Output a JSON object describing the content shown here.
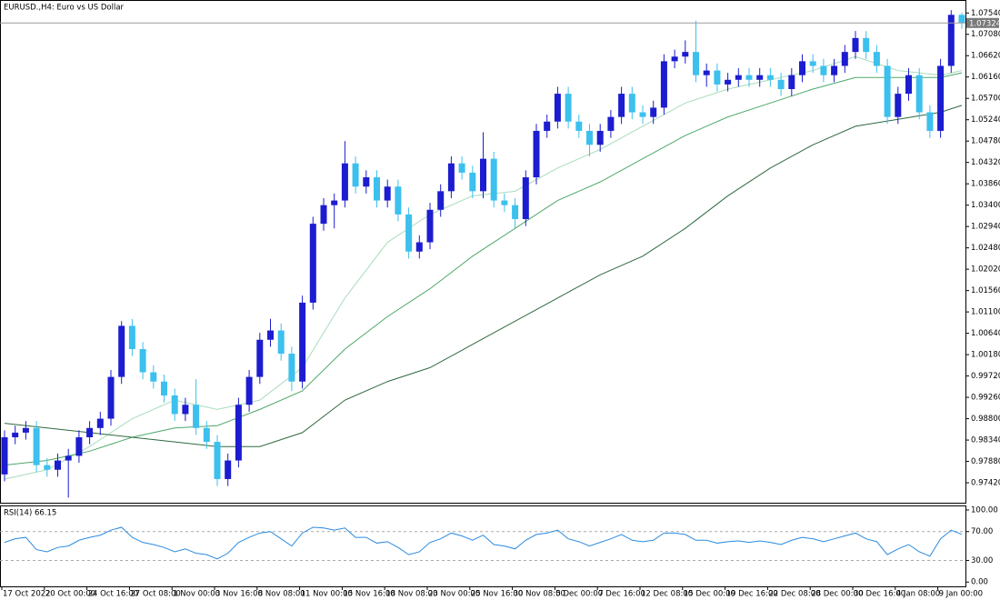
{
  "chart_data": [
    {
      "type": "candlestick",
      "title": "EURUSD.,H4:  Euro vs US Dollar",
      "up_color": "#1c1cd0",
      "down_color": "#3cc0ee",
      "ylim": [
        0.9699,
        1.0778
      ],
      "yticks": [
        {
          "value": 1.0754,
          "label": "1.07540"
        },
        {
          "value": 1.0708,
          "label": "1.07080"
        },
        {
          "value": 1.0662,
          "label": "1.06620"
        },
        {
          "value": 1.0616,
          "label": "1.06160"
        },
        {
          "value": 1.057,
          "label": "1.05700"
        },
        {
          "value": 1.0524,
          "label": "1.05240"
        },
        {
          "value": 1.0478,
          "label": "1.04780"
        },
        {
          "value": 1.0432,
          "label": "1.04320"
        },
        {
          "value": 1.0386,
          "label": "1.03860"
        },
        {
          "value": 1.034,
          "label": "1.03400"
        },
        {
          "value": 1.0294,
          "label": "1.02940"
        },
        {
          "value": 1.0248,
          "label": "1.02480"
        },
        {
          "value": 1.0202,
          "label": "1.02020"
        },
        {
          "value": 1.0156,
          "label": "1.01560"
        },
        {
          "value": 1.011,
          "label": "1.01100"
        },
        {
          "value": 1.0064,
          "label": "1.00640"
        },
        {
          "value": 1.0018,
          "label": "1.00180"
        },
        {
          "value": 0.9972,
          "label": "0.99720"
        },
        {
          "value": 0.9926,
          "label": "0.99260"
        },
        {
          "value": 0.988,
          "label": "0.98800"
        },
        {
          "value": 0.9834,
          "label": "0.98340"
        },
        {
          "value": 0.9788,
          "label": "0.97880"
        },
        {
          "value": 0.9742,
          "label": "0.97420"
        }
      ],
      "last_price": 1.07324,
      "x_labels": [
        "17 Oct 2022",
        "20 Oct 00:00",
        "24 Oct 16:00",
        "27 Oct 08:00",
        "1 Nov 00:00",
        "3 Nov 16:00",
        "8 Nov 08:00",
        "11 Nov 00:00",
        "15 Nov 16:00",
        "18 Nov 08:00",
        "23 Nov 00:00",
        "25 Nov 16:00",
        "30 Nov 08:00",
        "5 Dec 00:00",
        "7 Dec 16:00",
        "12 Dec 08:00",
        "15 Dec 00:00",
        "19 Dec 16:00",
        "22 Dec 08:00",
        "28 Dec 00:00",
        "30 Dec 16:00",
        "4 Jan 08:00",
        "9 Jan 00:00"
      ],
      "open": [
        0.976,
        0.984,
        0.985,
        0.986,
        0.978,
        0.977,
        0.979,
        0.98,
        0.984,
        0.986,
        0.988,
        0.997,
        1.008,
        1.003,
        0.998,
        0.996,
        0.993,
        0.989,
        0.991,
        0.986,
        0.983,
        0.975,
        0.979,
        0.991,
        0.997,
        1.005,
        1.007,
        1.002,
        0.996,
        1.013,
        1.03,
        1.034,
        1.035,
        1.043,
        1.038,
        1.04,
        1.035,
        1.038,
        1.032,
        1.024,
        1.026,
        1.033,
        1.037,
        1.043,
        1.041,
        1.037,
        1.044,
        1.035,
        1.034,
        1.031,
        1.04,
        1.05,
        1.052,
        1.058,
        1.052,
        1.05,
        1.047,
        1.05,
        1.053,
        1.058,
        1.054,
        1.053,
        1.055,
        1.065,
        1.066,
        1.067,
        1.062,
        1.063,
        1.06,
        1.061,
        1.062,
        1.061,
        1.062,
        1.061,
        1.059,
        1.062,
        1.065,
        1.064,
        1.062,
        1.064,
        1.067,
        1.07,
        1.067,
        1.064,
        1.053,
        1.058,
        1.062,
        1.054,
        1.05,
        1.064,
        1.075
      ],
      "high": [
        0.9855,
        0.9865,
        0.9875,
        0.9875,
        0.9795,
        0.9805,
        0.9815,
        0.9855,
        0.9875,
        0.9895,
        0.9985,
        1.009,
        1.0095,
        1.0045,
        0.9995,
        0.9975,
        0.9945,
        0.9925,
        0.9965,
        0.9875,
        0.9845,
        0.9805,
        0.9925,
        0.9985,
        1.0065,
        1.0095,
        1.0085,
        1.0035,
        1.0145,
        1.0315,
        1.0355,
        1.0365,
        1.0478,
        1.0445,
        1.0415,
        1.0415,
        1.0395,
        1.0395,
        1.0335,
        1.0275,
        1.0345,
        1.0385,
        1.0445,
        1.0445,
        1.0425,
        1.0497,
        1.0455,
        1.0365,
        1.0355,
        1.0415,
        1.0515,
        1.0535,
        1.0595,
        1.0595,
        1.0535,
        1.0515,
        1.0515,
        1.0545,
        1.0595,
        1.0595,
        1.0555,
        1.0565,
        1.0665,
        1.0675,
        1.0695,
        1.0737,
        1.0645,
        1.0645,
        1.0625,
        1.0635,
        1.0635,
        1.0635,
        1.0635,
        1.0625,
        1.0635,
        1.0665,
        1.0665,
        1.0655,
        1.0655,
        1.0685,
        1.0715,
        1.0715,
        1.0685,
        1.0655,
        1.0595,
        1.0635,
        1.0635,
        1.0555,
        1.0655,
        1.076,
        1.0755
      ],
      "low": [
        0.9745,
        0.9825,
        0.9835,
        0.9765,
        0.9755,
        0.9755,
        0.971,
        0.9785,
        0.9825,
        0.9845,
        0.9865,
        0.9955,
        1.0015,
        0.9965,
        0.9945,
        0.9915,
        0.9875,
        0.9875,
        0.9845,
        0.9815,
        0.9735,
        0.9735,
        0.9775,
        0.9895,
        0.9955,
        1.0035,
        1.0005,
        0.994,
        0.9945,
        1.0115,
        1.0285,
        1.029,
        1.0335,
        1.0365,
        1.0365,
        1.0335,
        1.0335,
        1.0305,
        1.0225,
        1.0225,
        1.0245,
        1.0315,
        1.0355,
        1.0395,
        1.0355,
        1.0355,
        1.0335,
        1.0325,
        1.029,
        1.0295,
        1.0385,
        1.0485,
        1.0505,
        1.0505,
        1.0485,
        1.0445,
        1.0455,
        1.0485,
        1.0515,
        1.0525,
        1.0515,
        1.0515,
        1.0535,
        1.0635,
        1.0645,
        1.0605,
        1.0595,
        1.0585,
        1.0585,
        1.0595,
        1.0595,
        1.0595,
        1.0595,
        1.0575,
        1.0575,
        1.0605,
        1.0625,
        1.0605,
        1.0605,
        1.0625,
        1.0655,
        1.0655,
        1.0625,
        1.0515,
        1.0515,
        1.0565,
        1.0525,
        1.0485,
        1.0485,
        1.0625,
        1.072
      ],
      "close": [
        0.984,
        0.985,
        0.986,
        0.978,
        0.977,
        0.979,
        0.98,
        0.984,
        0.986,
        0.988,
        0.997,
        1.008,
        1.003,
        0.998,
        0.996,
        0.993,
        0.989,
        0.991,
        0.986,
        0.983,
        0.975,
        0.979,
        0.991,
        0.997,
        1.005,
        1.007,
        1.002,
        0.996,
        1.013,
        1.03,
        1.034,
        1.035,
        1.043,
        1.038,
        1.04,
        1.035,
        1.038,
        1.032,
        1.024,
        1.026,
        1.033,
        1.037,
        1.043,
        1.041,
        1.037,
        1.044,
        1.035,
        1.034,
        1.031,
        1.04,
        1.05,
        1.052,
        1.058,
        1.052,
        1.05,
        1.047,
        1.05,
        1.053,
        1.058,
        1.054,
        1.053,
        1.055,
        1.065,
        1.066,
        1.067,
        1.062,
        1.063,
        1.06,
        1.061,
        1.062,
        1.061,
        1.062,
        1.061,
        1.059,
        1.062,
        1.065,
        1.064,
        1.062,
        1.064,
        1.067,
        1.07,
        1.067,
        1.064,
        1.053,
        1.058,
        1.062,
        1.054,
        1.05,
        1.064,
        1.075,
        1.0732
      ],
      "ma_x": [
        0,
        4,
        8,
        12,
        16,
        20,
        24,
        28,
        32,
        36,
        40,
        44,
        48,
        52,
        56,
        60,
        64,
        68,
        72,
        76,
        80,
        84,
        88,
        90
      ],
      "ma_lines": [
        {
          "color": "#a8dcbc",
          "values": [
            0.975,
            0.977,
            0.982,
            0.988,
            0.992,
            0.99,
            0.992,
            0.999,
            1.014,
            1.026,
            1.032,
            1.036,
            1.037,
            1.042,
            1.046,
            1.051,
            1.056,
            1.059,
            1.061,
            1.063,
            1.066,
            1.063,
            1.062,
            1.063
          ]
        },
        {
          "color": "#4ea86a",
          "values": [
            0.978,
            0.979,
            0.981,
            0.984,
            0.986,
            0.9865,
            0.99,
            0.994,
            1.003,
            1.01,
            1.016,
            1.023,
            1.029,
            1.035,
            1.039,
            1.044,
            1.049,
            1.053,
            1.056,
            1.059,
            1.0615,
            1.0615,
            1.0615,
            1.0625
          ]
        },
        {
          "color": "#2e6a40",
          "values": [
            0.987,
            0.986,
            0.985,
            0.984,
            0.983,
            0.982,
            0.982,
            0.985,
            0.992,
            0.996,
            0.999,
            1.004,
            1.009,
            1.014,
            1.019,
            1.023,
            1.029,
            1.036,
            1.042,
            1.047,
            1.051,
            1.0525,
            1.054,
            1.0555
          ]
        }
      ]
    },
    {
      "type": "line",
      "title": "RSI(14) 66.15",
      "color": "#2a8ae0",
      "ylim": [
        -6,
        105
      ],
      "yticks": [
        {
          "value": 100,
          "label": "100.00"
        },
        {
          "value": 70,
          "label": "70.00"
        },
        {
          "value": 30,
          "label": "30.00"
        },
        {
          "value": 0,
          "label": "0.00"
        }
      ],
      "values": [
        55,
        60,
        62,
        45,
        42,
        48,
        50,
        58,
        62,
        65,
        72,
        76,
        62,
        55,
        52,
        48,
        42,
        46,
        40,
        38,
        32,
        40,
        55,
        62,
        68,
        70,
        60,
        50,
        68,
        76,
        75,
        72,
        75,
        62,
        62,
        54,
        56,
        48,
        38,
        42,
        55,
        60,
        68,
        64,
        58,
        65,
        52,
        50,
        46,
        58,
        66,
        68,
        72,
        60,
        56,
        50,
        55,
        60,
        66,
        58,
        56,
        58,
        68,
        68,
        66,
        58,
        58,
        54,
        56,
        57,
        55,
        57,
        55,
        52,
        58,
        62,
        60,
        56,
        60,
        64,
        68,
        60,
        56,
        38,
        46,
        52,
        42,
        36,
        60,
        72,
        66.15
      ]
    }
  ]
}
